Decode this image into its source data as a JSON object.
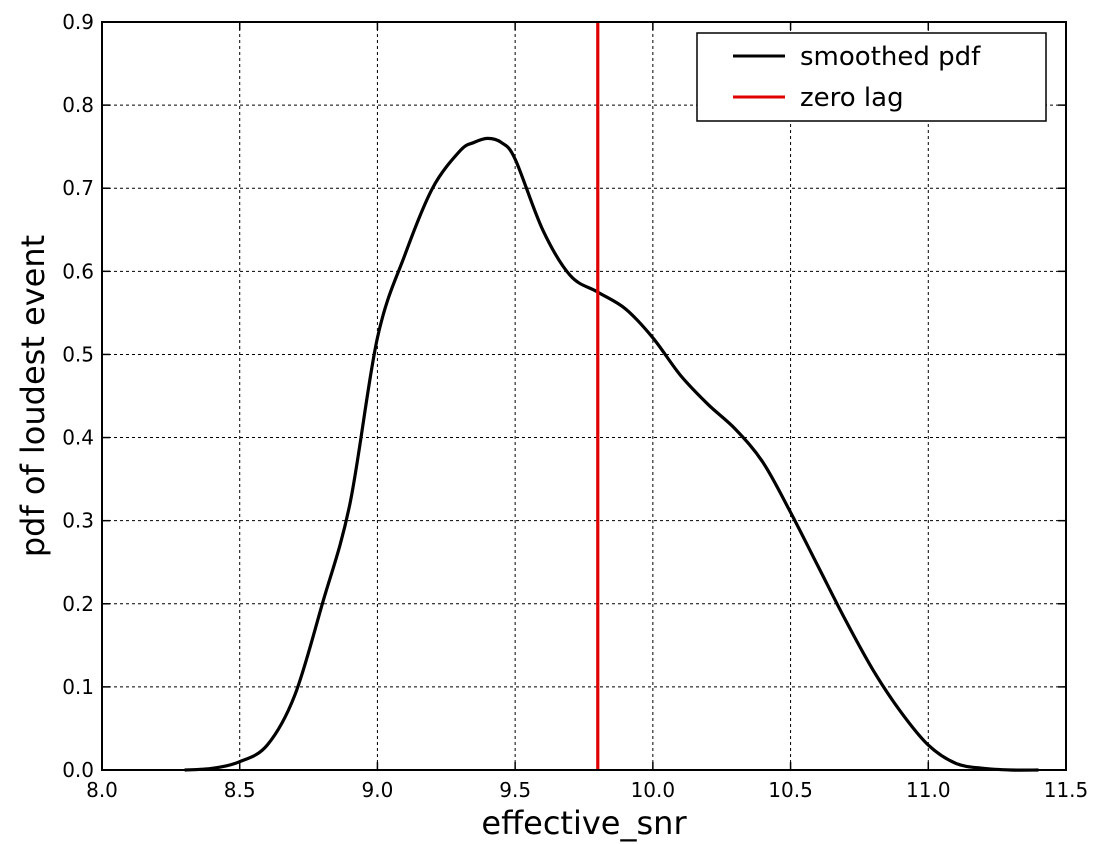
{
  "chart_data": {
    "type": "line",
    "title": "",
    "xlabel": "effective_snr",
    "ylabel": "pdf of loudest event",
    "xlim": [
      8.0,
      11.5
    ],
    "ylim": [
      0.0,
      0.9
    ],
    "x_ticks": [
      8.0,
      8.5,
      9.0,
      9.5,
      10.0,
      10.5,
      11.0,
      11.5
    ],
    "x_tick_labels": [
      "8.0",
      "8.5",
      "9.0",
      "9.5",
      "10.0",
      "10.5",
      "11.0",
      "11.5"
    ],
    "y_ticks": [
      0.0,
      0.1,
      0.2,
      0.3,
      0.4,
      0.5,
      0.6,
      0.7,
      0.8,
      0.9
    ],
    "y_tick_labels": [
      "0.0",
      "0.1",
      "0.2",
      "0.3",
      "0.4",
      "0.5",
      "0.6",
      "0.7",
      "0.8",
      "0.9"
    ],
    "grid": true,
    "legend_position": "top-right",
    "series": [
      {
        "name": "smoothed pdf",
        "color": "#000000",
        "x": [
          8.3,
          8.4,
          8.5,
          8.6,
          8.7,
          8.8,
          8.9,
          9.0,
          9.1,
          9.2,
          9.3,
          9.35,
          9.4,
          9.45,
          9.5,
          9.6,
          9.7,
          9.8,
          9.9,
          10.0,
          10.1,
          10.2,
          10.3,
          10.4,
          10.5,
          10.6,
          10.7,
          10.8,
          10.9,
          11.0,
          11.1,
          11.2,
          11.3,
          11.4
        ],
        "y": [
          0.0,
          0.002,
          0.01,
          0.03,
          0.09,
          0.2,
          0.32,
          0.52,
          0.62,
          0.7,
          0.745,
          0.755,
          0.76,
          0.755,
          0.735,
          0.65,
          0.595,
          0.575,
          0.555,
          0.52,
          0.475,
          0.44,
          0.41,
          0.37,
          0.31,
          0.245,
          0.18,
          0.12,
          0.07,
          0.03,
          0.008,
          0.002,
          0.0,
          0.0
        ]
      }
    ],
    "vlines": [
      {
        "name": "zero lag",
        "x": 9.8,
        "color": "#e00000"
      }
    ]
  }
}
